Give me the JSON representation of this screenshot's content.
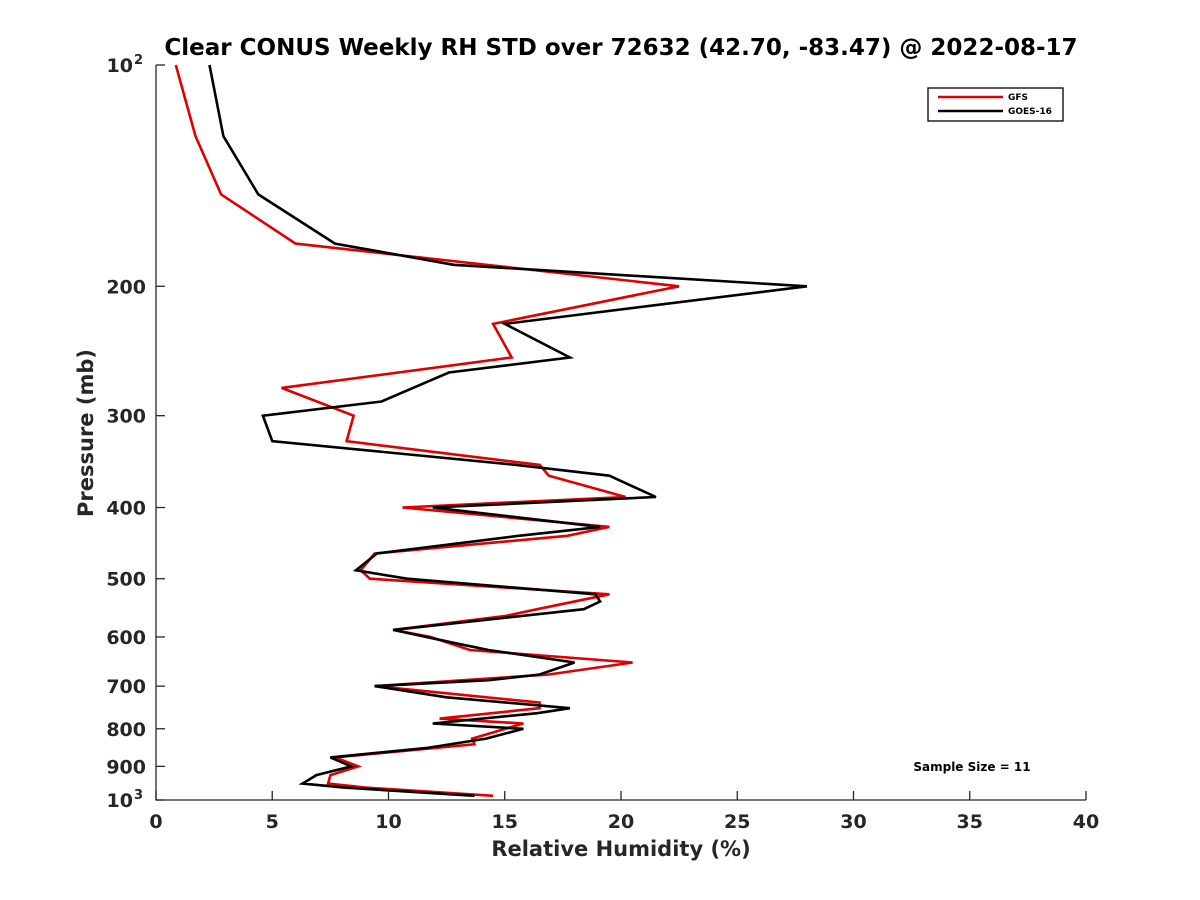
{
  "chart_data": {
    "type": "line",
    "title": "Clear CONUS Weekly RH STD over 72632 (42.70, -83.47) @ 2022-08-17",
    "xlabel": "Relative Humidity (%)",
    "ylabel": "Pressure (mb)",
    "xlim": [
      0,
      40
    ],
    "ylim": [
      100,
      1000
    ],
    "y_scale": "log",
    "y_reversed": true,
    "x_ticks": [
      "0",
      "5",
      "10",
      "15",
      "20",
      "25",
      "30",
      "35",
      "40"
    ],
    "y_ticks": [
      {
        "value": 100,
        "base": "10",
        "exp": "2"
      },
      {
        "value": 200,
        "base": "200",
        "exp": ""
      },
      {
        "value": 300,
        "base": "300",
        "exp": ""
      },
      {
        "value": 400,
        "base": "400",
        "exp": ""
      },
      {
        "value": 500,
        "base": "500",
        "exp": ""
      },
      {
        "value": 600,
        "base": "600",
        "exp": ""
      },
      {
        "value": 700,
        "base": "700",
        "exp": ""
      },
      {
        "value": 800,
        "base": "800",
        "exp": ""
      },
      {
        "value": 900,
        "base": "900",
        "exp": ""
      },
      {
        "value": 1000,
        "base": "10",
        "exp": "3"
      }
    ],
    "grid": false,
    "legend_position": "top-right",
    "annotation": "Sample Size = 11",
    "series": [
      {
        "name": "GFS",
        "color": "#e00000",
        "points": [
          [
            0.85,
            100
          ],
          [
            1.7,
            125
          ],
          [
            2.8,
            150
          ],
          [
            6.0,
            175
          ],
          [
            22.5,
            200
          ],
          [
            14.5,
            225
          ],
          [
            15.3,
            250
          ],
          [
            5.4,
            275
          ],
          [
            8.5,
            300
          ],
          [
            8.2,
            325
          ],
          [
            16.5,
            350
          ],
          [
            16.9,
            362
          ],
          [
            20.2,
            387
          ],
          [
            10.6,
            400
          ],
          [
            19.5,
            425
          ],
          [
            17.7,
            437
          ],
          [
            9.4,
            462
          ],
          [
            8.8,
            487
          ],
          [
            9.2,
            500
          ],
          [
            19.5,
            525
          ],
          [
            16.4,
            550
          ],
          [
            15.0,
            562
          ],
          [
            10.2,
            587
          ],
          [
            11.8,
            600
          ],
          [
            13.5,
            625
          ],
          [
            20.5,
            650
          ],
          [
            16.9,
            675
          ],
          [
            9.4,
            700
          ],
          [
            16.5,
            737
          ],
          [
            16.5,
            750
          ],
          [
            12.2,
            775
          ],
          [
            15.8,
            787
          ],
          [
            13.6,
            825
          ],
          [
            13.7,
            840
          ],
          [
            7.7,
            875
          ],
          [
            8.7,
            900
          ],
          [
            7.5,
            925
          ],
          [
            7.4,
            950
          ],
          [
            9.0,
            962
          ],
          [
            14.5,
            987
          ]
        ]
      },
      {
        "name": "GOES-16",
        "color": "#000000",
        "points": [
          [
            2.3,
            100
          ],
          [
            2.9,
            125
          ],
          [
            4.4,
            150
          ],
          [
            7.7,
            175
          ],
          [
            12.8,
            187
          ],
          [
            28.0,
            200
          ],
          [
            15.0,
            225
          ],
          [
            17.8,
            250
          ],
          [
            12.6,
            262
          ],
          [
            9.7,
            287
          ],
          [
            4.6,
            300
          ],
          [
            5.0,
            325
          ],
          [
            15.5,
            350
          ],
          [
            19.5,
            362
          ],
          [
            21.5,
            387
          ],
          [
            11.9,
            400
          ],
          [
            19.1,
            425
          ],
          [
            15.6,
            437
          ],
          [
            9.5,
            462
          ],
          [
            8.6,
            487
          ],
          [
            10.8,
            500
          ],
          [
            18.9,
            525
          ],
          [
            19.1,
            537
          ],
          [
            18.4,
            550
          ],
          [
            10.2,
            587
          ],
          [
            12.9,
            612
          ],
          [
            14.3,
            625
          ],
          [
            18.0,
            650
          ],
          [
            16.5,
            675
          ],
          [
            14.3,
            687
          ],
          [
            9.4,
            700
          ],
          [
            12.5,
            725
          ],
          [
            17.8,
            750
          ],
          [
            16.4,
            762
          ],
          [
            11.9,
            787
          ],
          [
            15.8,
            800
          ],
          [
            14.2,
            825
          ],
          [
            11.6,
            850
          ],
          [
            7.5,
            875
          ],
          [
            8.4,
            900
          ],
          [
            6.9,
            925
          ],
          [
            6.3,
            950
          ],
          [
            8.1,
            962
          ],
          [
            13.7,
            987
          ]
        ]
      }
    ]
  }
}
